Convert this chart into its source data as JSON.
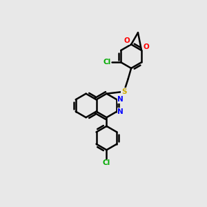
{
  "background_color": "#e8e8e8",
  "bond_color": "#000000",
  "bond_width": 1.8,
  "atom_colors": {
    "S": "#ccaa00",
    "N": "#0000ff",
    "O": "#ff0000",
    "Cl": "#00aa00",
    "C": "#000000"
  },
  "figsize": [
    3.0,
    3.0
  ],
  "dpi": 100
}
